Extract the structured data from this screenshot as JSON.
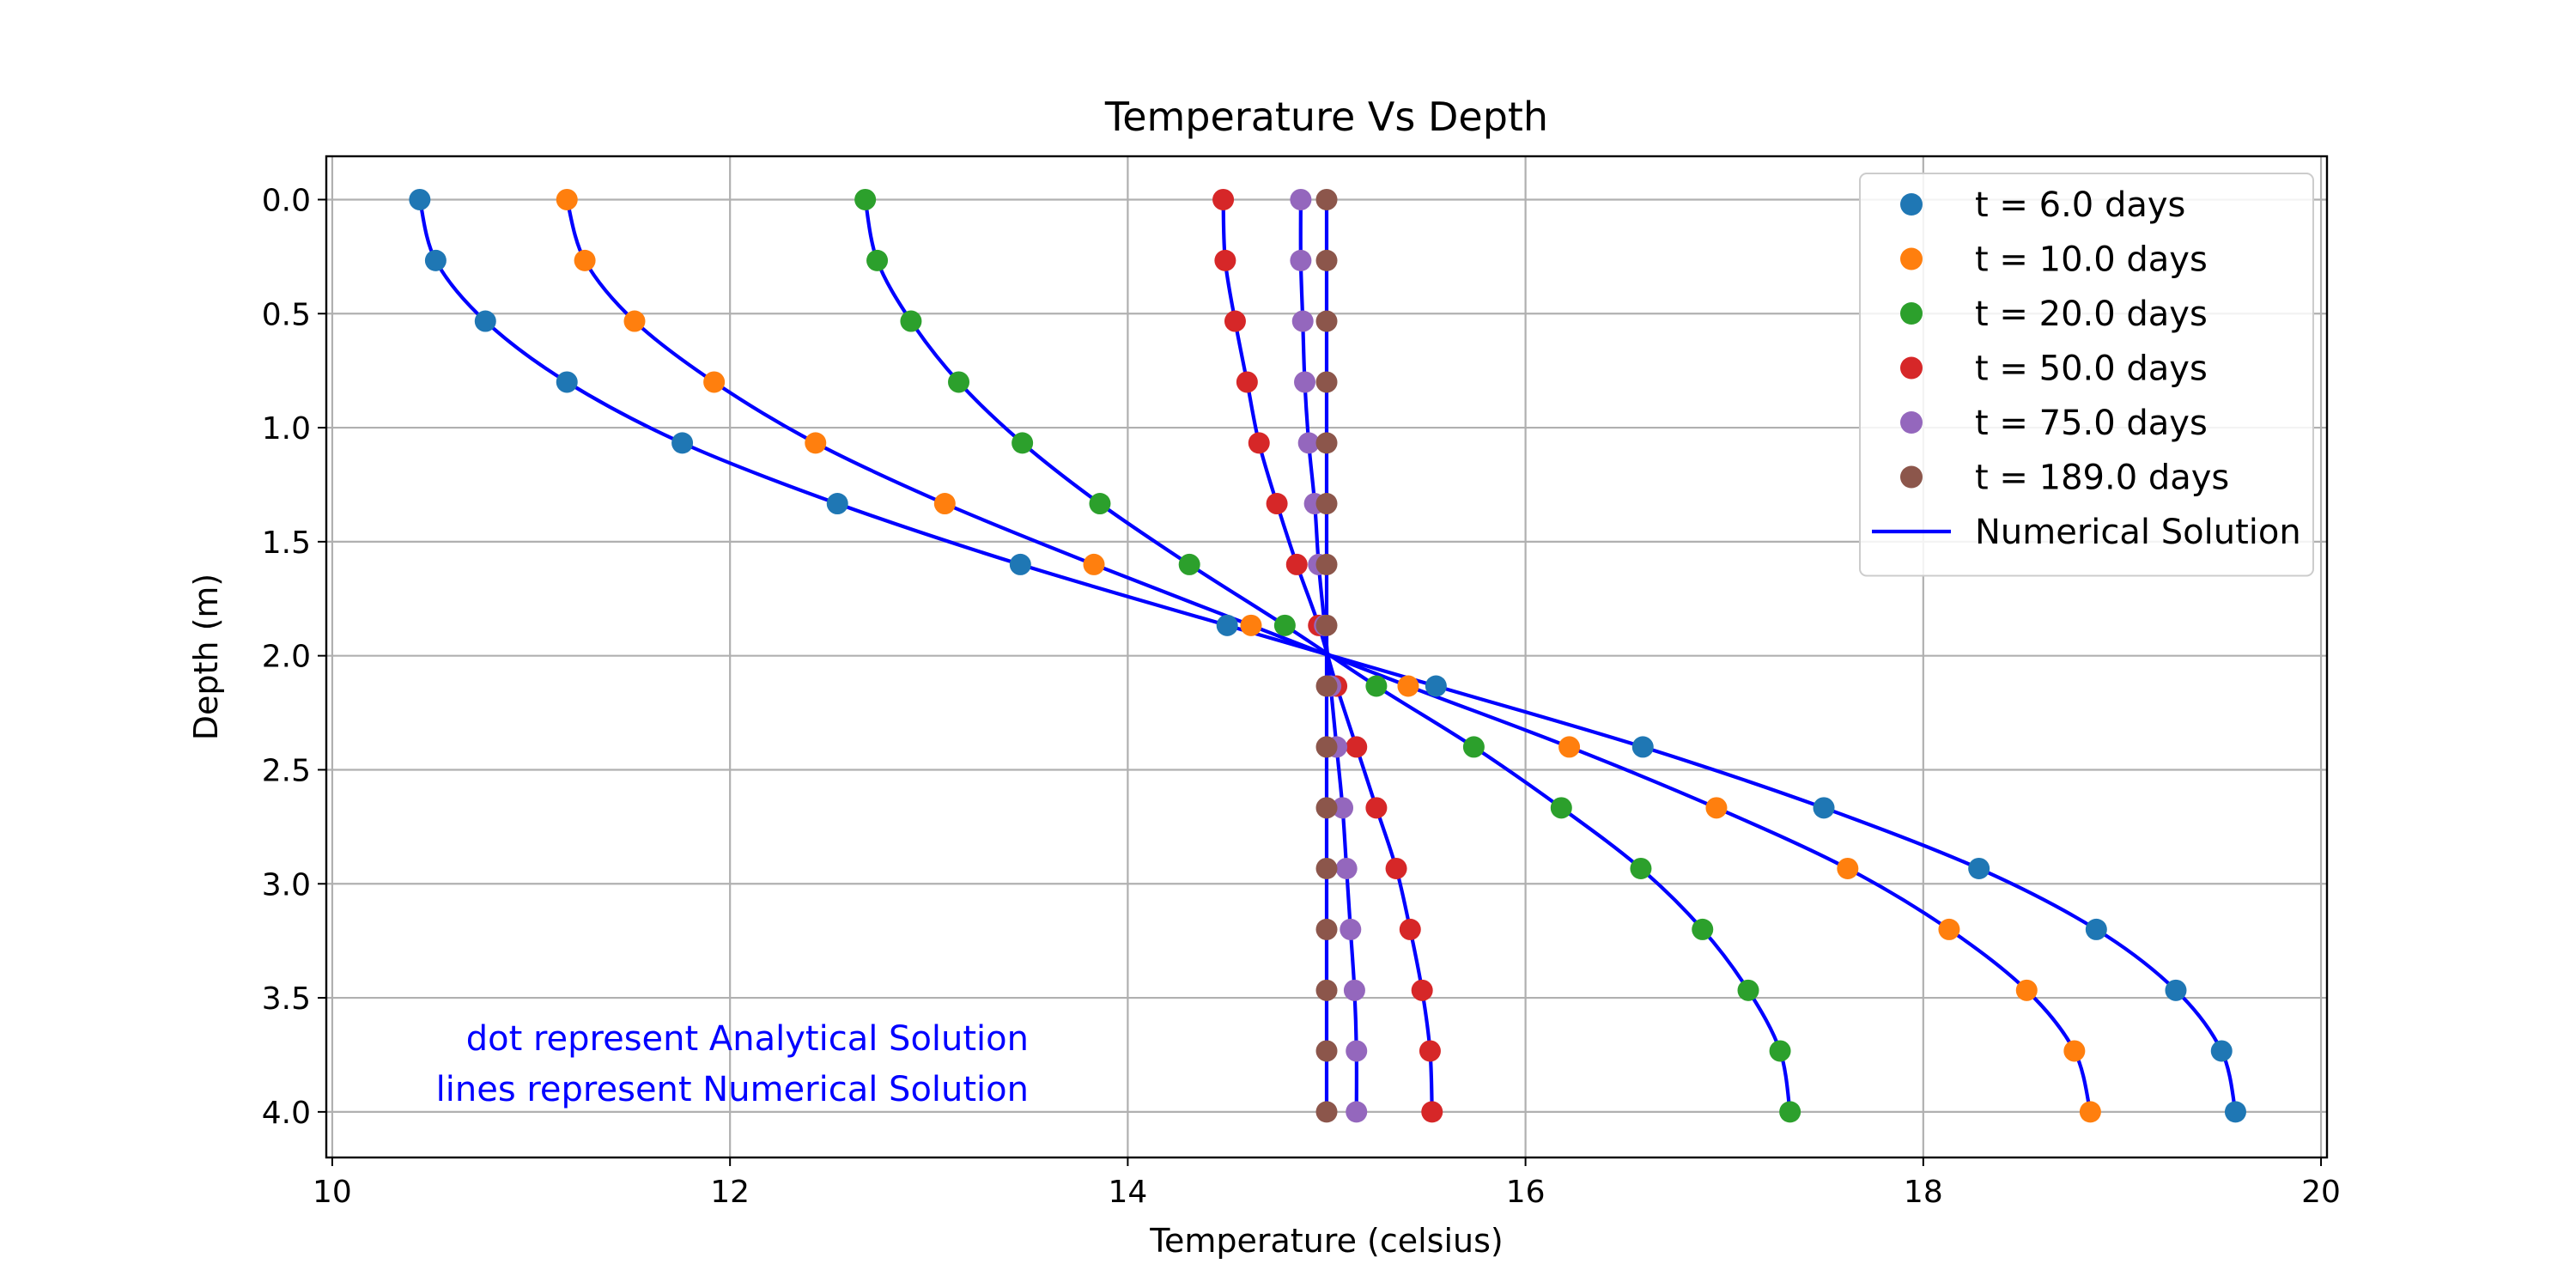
{
  "chart_data": {
    "type": "scatter",
    "title": "Temperature Vs Depth",
    "xlabel": "Temperature (celsius)",
    "ylabel": "Depth (m)",
    "xlim": [
      9.97,
      20.03
    ],
    "ylim": [
      4.2,
      -0.19
    ],
    "y_inverted": true,
    "grid": true,
    "legend_position": "top-right",
    "x_ticks": [
      10,
      12,
      14,
      16,
      18,
      20
    ],
    "x_tick_labels": [
      "10",
      "12",
      "14",
      "16",
      "18",
      "20"
    ],
    "y_ticks": [
      0.0,
      0.5,
      1.0,
      1.5,
      2.0,
      2.5,
      3.0,
      3.5,
      4.0
    ],
    "y_tick_labels": [
      "0.0",
      "0.5",
      "1.0",
      "1.5",
      "2.0",
      "2.5",
      "3.0",
      "3.5",
      "4.0"
    ],
    "depth": [
      0.0,
      0.267,
      0.533,
      0.8,
      1.067,
      1.333,
      1.6,
      1.867,
      2.133,
      2.4,
      2.667,
      2.933,
      3.2,
      3.467,
      3.733,
      4.0
    ],
    "series": [
      {
        "name": "t = 6.0 days",
        "color": "#1f77b4",
        "values": [
          10.44,
          10.52,
          10.77,
          11.18,
          11.76,
          12.54,
          13.46,
          14.5,
          15.55,
          16.59,
          17.5,
          18.28,
          18.87,
          19.27,
          19.5,
          19.57
        ]
      },
      {
        "name": "t = 10.0 days",
        "color": "#ff7f0e",
        "values": [
          11.18,
          11.27,
          11.52,
          11.92,
          12.43,
          13.08,
          13.83,
          14.62,
          15.41,
          16.22,
          16.96,
          17.62,
          18.13,
          18.52,
          18.76,
          18.84
        ]
      },
      {
        "name": "t = 20.0 days",
        "color": "#2ca02c",
        "values": [
          12.68,
          12.74,
          12.91,
          13.15,
          13.47,
          13.86,
          14.31,
          14.79,
          15.25,
          15.74,
          16.18,
          16.58,
          16.89,
          17.12,
          17.28,
          17.33
        ]
      },
      {
        "name": "t = 50.0 days",
        "color": "#d62728",
        "values": [
          14.48,
          14.49,
          14.54,
          14.6,
          14.66,
          14.75,
          14.85,
          14.96,
          15.05,
          15.15,
          15.25,
          15.35,
          15.42,
          15.48,
          15.52,
          15.53
        ]
      },
      {
        "name": "t = 75.0 days",
        "color": "#9467bd",
        "values": [
          14.87,
          14.87,
          14.88,
          14.89,
          14.91,
          14.94,
          14.96,
          14.99,
          15.02,
          15.05,
          15.08,
          15.1,
          15.12,
          15.14,
          15.15,
          15.15
        ]
      },
      {
        "name": "t = 189.0 days",
        "color": "#8c564b",
        "values": [
          15.0,
          15.0,
          15.0,
          15.0,
          15.0,
          15.0,
          15.0,
          15.0,
          15.0,
          15.0,
          15.0,
          15.0,
          15.0,
          15.0,
          15.0,
          15.0
        ]
      }
    ],
    "numerical_solution": {
      "name": "Numerical Solution",
      "color": "#0000ff"
    },
    "annotations": [
      "dot represent Analytical Solution",
      "lines represent Numerical Solution"
    ]
  }
}
